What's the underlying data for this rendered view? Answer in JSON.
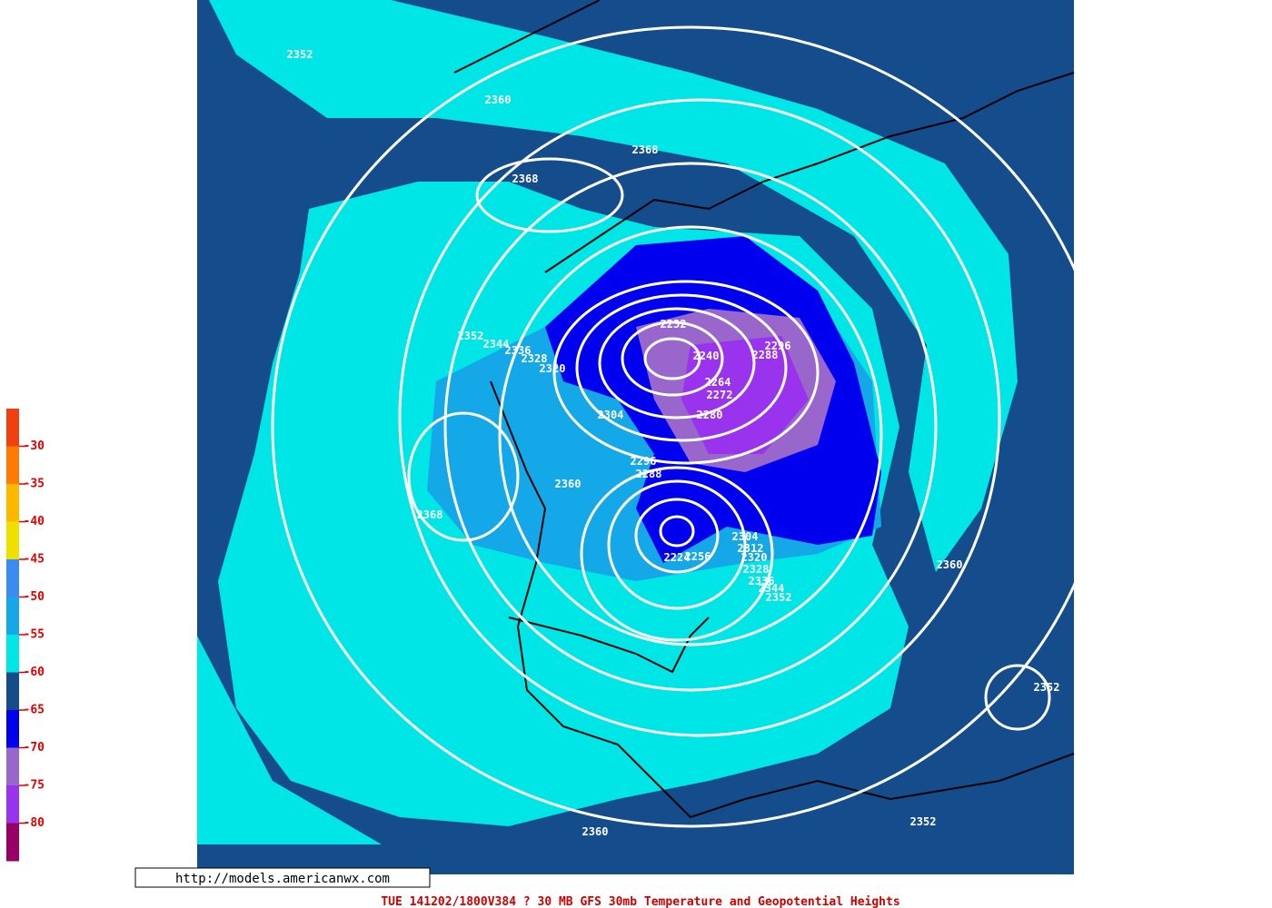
{
  "legend": {
    "ticks": [
      -30,
      -35,
      -40,
      -45,
      -50,
      -55,
      -60,
      -65,
      -70,
      -75,
      -80
    ],
    "colors": [
      "#f04010",
      "#ff7a00",
      "#ffb800",
      "#f0e000",
      "#3a8cf0",
      "#14a8e8",
      "#00e6e6",
      "#144c8c",
      "#0000ee",
      "#9966cc",
      "#9933ee",
      "#990066"
    ]
  },
  "contour_labels": [
    2352,
    2360,
    2368,
    2368,
    2352,
    2344,
    2336,
    2328,
    2320,
    2232,
    2240,
    2288,
    2296,
    2264,
    2272,
    2280,
    2304,
    2296,
    2288,
    2360,
    2368,
    2224,
    2256,
    2304,
    2312,
    2320,
    2328,
    2336,
    2344,
    2352,
    2360,
    2352,
    2360,
    2352
  ],
  "url": "http://models.americanwx.com",
  "footer": "TUE 141202/1800V384  ? 30 MB GFS 30mb Temperature and Geopotential Heights"
}
